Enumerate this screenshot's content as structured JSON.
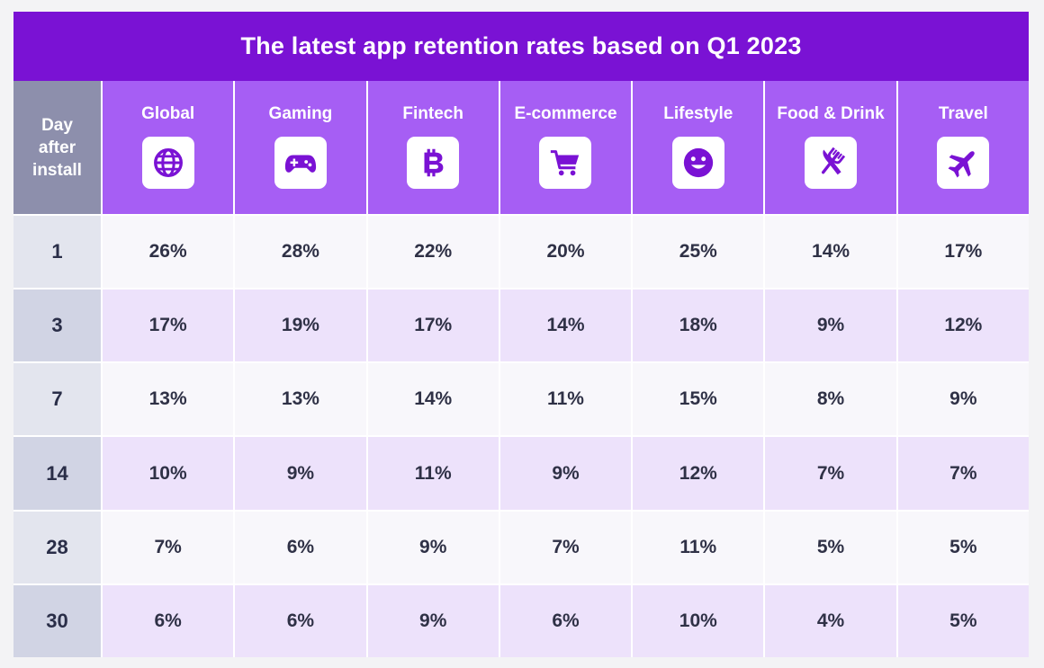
{
  "title": "The latest app retention rates based on Q1 2023",
  "corner_label": "Day\nafter\ninstall",
  "colors": {
    "title_bg": "#7a12d4",
    "header_bg": "#a65ef4",
    "icon_fg": "#7a12d4",
    "row_alt_bg": "#ede2fb",
    "row_bg": "#f8f7fb",
    "day_col_bg": "#d1d4e4",
    "corner_bg": "#8d8fac"
  },
  "chart_data": {
    "type": "table",
    "title": "The latest app retention rates based on Q1 2023",
    "row_header": "Day after install",
    "columns": [
      {
        "label": "Global",
        "icon": "globe-icon"
      },
      {
        "label": "Gaming",
        "icon": "gamepad-icon"
      },
      {
        "label": "Fintech",
        "icon": "bitcoin-icon"
      },
      {
        "label": "E-commerce",
        "icon": "shopping-cart-icon"
      },
      {
        "label": "Lifestyle",
        "icon": "smiley-icon"
      },
      {
        "label": "Food & Drink",
        "icon": "fork-knife-icon"
      },
      {
        "label": "Travel",
        "icon": "airplane-icon"
      }
    ],
    "rows": [
      {
        "day": "1",
        "values": [
          "26%",
          "28%",
          "22%",
          "20%",
          "25%",
          "14%",
          "17%"
        ]
      },
      {
        "day": "3",
        "values": [
          "17%",
          "19%",
          "17%",
          "14%",
          "18%",
          "9%",
          "12%"
        ]
      },
      {
        "day": "7",
        "values": [
          "13%",
          "13%",
          "14%",
          "11%",
          "15%",
          "8%",
          "9%"
        ]
      },
      {
        "day": "14",
        "values": [
          "10%",
          "9%",
          "11%",
          "9%",
          "12%",
          "7%",
          "7%"
        ]
      },
      {
        "day": "28",
        "values": [
          "7%",
          "6%",
          "9%",
          "7%",
          "11%",
          "5%",
          "5%"
        ]
      },
      {
        "day": "30",
        "values": [
          "6%",
          "6%",
          "9%",
          "6%",
          "10%",
          "4%",
          "5%"
        ]
      }
    ]
  }
}
